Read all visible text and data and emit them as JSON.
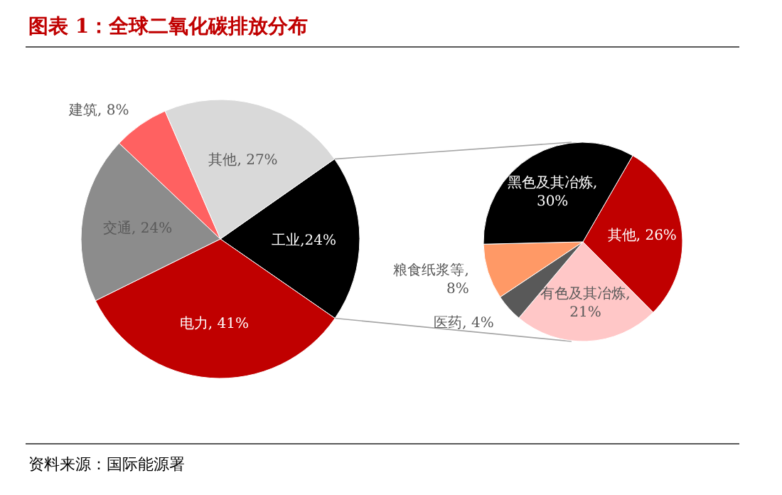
{
  "chart_data": [
    {
      "type": "pie",
      "title": "图表 1：全球二氧化碳排放分布",
      "annotations": [
        "资料来源：国际能源署"
      ],
      "categories": [
        "工业",
        "电力",
        "交通",
        "建筑",
        "其他"
      ],
      "values": [
        24,
        41,
        24,
        8,
        27
      ],
      "value_labels": [
        ",24%",
        ", 41%",
        ", 24%",
        ", 8%",
        ", 27%"
      ],
      "colors": [
        "#000000",
        "#c00000",
        "#8c8c8c",
        "#ff6161",
        "#d9d9d9"
      ]
    },
    {
      "type": "pie",
      "categories": [
        "其他",
        "有色及其冶炼",
        "医药",
        "粮食纸浆等",
        "黑色及其冶炼"
      ],
      "values": [
        26,
        21,
        4,
        8,
        30
      ],
      "value_labels": [
        ", 26%",
        ", 21%",
        ", 4%",
        ", 8%",
        ", 30%"
      ],
      "colors": [
        "#c00000",
        "#ffc7c7",
        "#595959",
        "#ff9966",
        "#000000"
      ]
    }
  ]
}
